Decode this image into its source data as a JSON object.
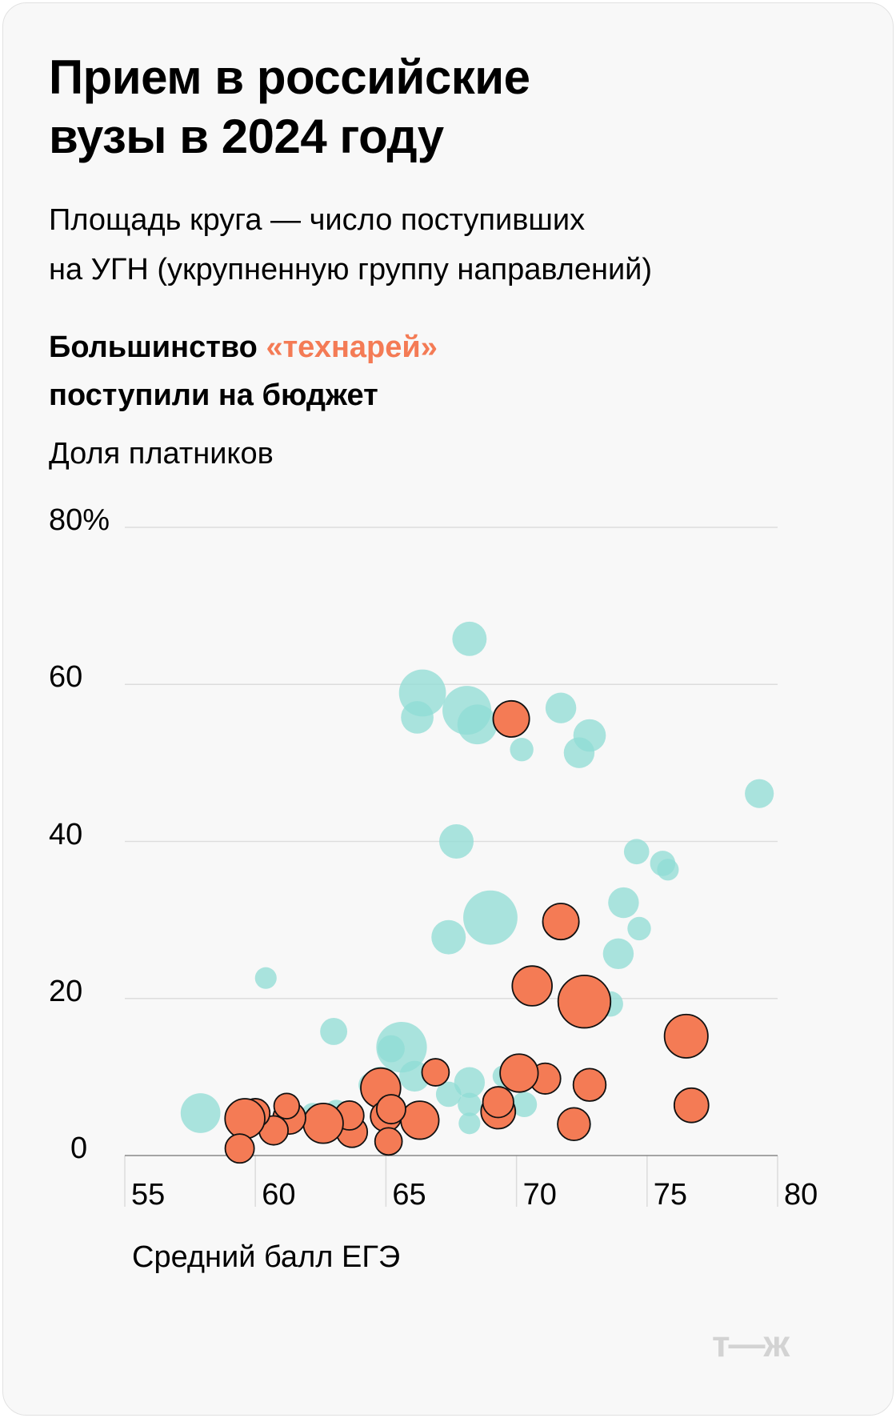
{
  "title_lines": [
    "Прием в российские",
    "вузы в 2024 году"
  ],
  "subtitle_lines": [
    "Площадь круга — число поступивших",
    "на УГН (укрупненную группу направлений)"
  ],
  "heading": {
    "part1": "Большинство ",
    "accent": "«технарей»",
    "line2": "поступили на бюджет"
  },
  "logo": "т—ж",
  "colors": {
    "background": "#f8f8f8",
    "technical": "#f47b55",
    "other": "#8fdcd4",
    "grid": "#dddddd"
  },
  "chart_data": {
    "type": "scatter",
    "title": "Прием в российские вузы в 2024 году",
    "ylabel": "Доля платников",
    "xlabel": "Средний балл ЕГЭ",
    "xlim": [
      55,
      80
    ],
    "ylim": [
      0,
      80
    ],
    "xticks": [
      "55",
      "60",
      "65",
      "70",
      "75",
      "80"
    ],
    "yticks": [
      {
        "value": 0,
        "label": "0"
      },
      {
        "value": 20,
        "label": "20"
      },
      {
        "value": 40,
        "label": "40"
      },
      {
        "value": 60,
        "label": "60"
      },
      {
        "value": 80,
        "label": "80%"
      }
    ],
    "grid": "horizontal",
    "size_encoding": "area = number of admitted students (relative)",
    "series": [
      {
        "group": "other",
        "color": "#8fdcd4",
        "points": [
          {
            "x": 57.9,
            "y": 5.4,
            "size": 22
          },
          {
            "x": 60.4,
            "y": 22.6,
            "size": 12
          },
          {
            "x": 63.0,
            "y": 15.8,
            "size": 15
          },
          {
            "x": 65.6,
            "y": 13.8,
            "size": 28
          },
          {
            "x": 65.2,
            "y": 13.6,
            "size": 15
          },
          {
            "x": 64.8,
            "y": 9.5,
            "size": 16
          },
          {
            "x": 66.1,
            "y": 10.1,
            "size": 17
          },
          {
            "x": 67.4,
            "y": 7.8,
            "size": 14
          },
          {
            "x": 68.2,
            "y": 9.3,
            "size": 17
          },
          {
            "x": 68.2,
            "y": 6.5,
            "size": 13
          },
          {
            "x": 68.2,
            "y": 4.1,
            "size": 12
          },
          {
            "x": 69.5,
            "y": 10.1,
            "size": 12
          },
          {
            "x": 70.3,
            "y": 6.5,
            "size": 14
          },
          {
            "x": 62.2,
            "y": 5.2,
            "size": 13
          },
          {
            "x": 63.1,
            "y": 5.6,
            "size": 13
          },
          {
            "x": 64.4,
            "y": 9.0,
            "size": 13
          },
          {
            "x": 66.4,
            "y": 58.9,
            "size": 26
          },
          {
            "x": 66.2,
            "y": 55.8,
            "size": 18
          },
          {
            "x": 68.1,
            "y": 56.7,
            "size": 27
          },
          {
            "x": 68.5,
            "y": 54.9,
            "size": 22
          },
          {
            "x": 68.2,
            "y": 65.8,
            "size": 19
          },
          {
            "x": 70.2,
            "y": 51.7,
            "size": 13
          },
          {
            "x": 71.7,
            "y": 57.0,
            "size": 17
          },
          {
            "x": 72.4,
            "y": 51.3,
            "size": 17
          },
          {
            "x": 72.8,
            "y": 53.5,
            "size": 18
          },
          {
            "x": 79.3,
            "y": 46.1,
            "size": 16
          },
          {
            "x": 67.7,
            "y": 40.0,
            "size": 19
          },
          {
            "x": 67.4,
            "y": 27.8,
            "size": 19
          },
          {
            "x": 69.0,
            "y": 30.3,
            "size": 30
          },
          {
            "x": 74.6,
            "y": 38.7,
            "size": 14
          },
          {
            "x": 75.6,
            "y": 37.2,
            "size": 14
          },
          {
            "x": 75.8,
            "y": 36.4,
            "size": 12
          },
          {
            "x": 74.1,
            "y": 32.2,
            "size": 17
          },
          {
            "x": 74.7,
            "y": 28.9,
            "size": 13
          },
          {
            "x": 73.9,
            "y": 25.7,
            "size": 17
          },
          {
            "x": 73.6,
            "y": 19.3,
            "size": 14
          }
        ]
      },
      {
        "group": "technical",
        "label": "«технарей»",
        "color": "#f47b55",
        "points": [
          {
            "x": 69.8,
            "y": 55.6,
            "size": 20
          },
          {
            "x": 71.7,
            "y": 29.8,
            "size": 20
          },
          {
            "x": 70.6,
            "y": 21.6,
            "size": 22
          },
          {
            "x": 72.6,
            "y": 19.6,
            "size": 29
          },
          {
            "x": 76.5,
            "y": 15.2,
            "size": 24
          },
          {
            "x": 76.7,
            "y": 6.4,
            "size": 19
          },
          {
            "x": 72.8,
            "y": 9.0,
            "size": 18
          },
          {
            "x": 72.2,
            "y": 4.0,
            "size": 18
          },
          {
            "x": 71.1,
            "y": 9.8,
            "size": 17
          },
          {
            "x": 70.1,
            "y": 10.5,
            "size": 21
          },
          {
            "x": 69.3,
            "y": 5.6,
            "size": 19
          },
          {
            "x": 69.3,
            "y": 6.8,
            "size": 17
          },
          {
            "x": 66.9,
            "y": 10.6,
            "size": 15
          },
          {
            "x": 66.3,
            "y": 4.5,
            "size": 21
          },
          {
            "x": 64.8,
            "y": 8.6,
            "size": 22
          },
          {
            "x": 65.0,
            "y": 5.0,
            "size": 17
          },
          {
            "x": 65.2,
            "y": 5.9,
            "size": 16
          },
          {
            "x": 65.1,
            "y": 1.8,
            "size": 15
          },
          {
            "x": 63.7,
            "y": 3.0,
            "size": 17
          },
          {
            "x": 63.6,
            "y": 5.1,
            "size": 16
          },
          {
            "x": 62.6,
            "y": 4.1,
            "size": 22
          },
          {
            "x": 61.3,
            "y": 4.8,
            "size": 18
          },
          {
            "x": 61.2,
            "y": 6.3,
            "size": 14
          },
          {
            "x": 60.7,
            "y": 3.2,
            "size": 16
          },
          {
            "x": 60.0,
            "y": 5.4,
            "size": 16
          },
          {
            "x": 59.6,
            "y": 4.7,
            "size": 22
          },
          {
            "x": 59.4,
            "y": 0.9,
            "size": 16
          }
        ]
      }
    ]
  }
}
